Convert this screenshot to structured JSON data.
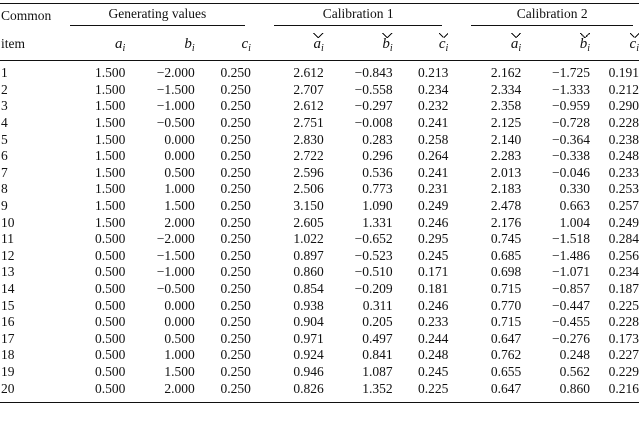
{
  "header": {
    "col0_line1": "Common",
    "col0_line2": "item",
    "groups": [
      "Generating values",
      "Calibration 1",
      "Calibration 2"
    ],
    "params": [
      "a",
      "b",
      "c"
    ],
    "param_subscript": "i"
  },
  "rows": [
    [
      "1",
      "1.500",
      "−2.000",
      "0.250",
      "2.612",
      "−0.843",
      "0.213",
      "2.162",
      "−1.725",
      "0.191"
    ],
    [
      "2",
      "1.500",
      "−1.500",
      "0.250",
      "2.707",
      "−0.558",
      "0.234",
      "2.334",
      "−1.333",
      "0.212"
    ],
    [
      "3",
      "1.500",
      "−1.000",
      "0.250",
      "2.612",
      "−0.297",
      "0.232",
      "2.358",
      "−0.959",
      "0.290"
    ],
    [
      "4",
      "1.500",
      "−0.500",
      "0.250",
      "2.751",
      "−0.008",
      "0.241",
      "2.125",
      "−0.728",
      "0.228"
    ],
    [
      "5",
      "1.500",
      "0.000",
      "0.250",
      "2.830",
      "0.283",
      "0.258",
      "2.140",
      "−0.364",
      "0.238"
    ],
    [
      "6",
      "1.500",
      "0.000",
      "0.250",
      "2.722",
      "0.296",
      "0.264",
      "2.283",
      "−0.338",
      "0.248"
    ],
    [
      "7",
      "1.500",
      "0.500",
      "0.250",
      "2.596",
      "0.536",
      "0.241",
      "2.013",
      "−0.046",
      "0.233"
    ],
    [
      "8",
      "1.500",
      "1.000",
      "0.250",
      "2.506",
      "0.773",
      "0.231",
      "2.183",
      "0.330",
      "0.253"
    ],
    [
      "9",
      "1.500",
      "1.500",
      "0.250",
      "3.150",
      "1.090",
      "0.249",
      "2.478",
      "0.663",
      "0.257"
    ],
    [
      "10",
      "1.500",
      "2.000",
      "0.250",
      "2.605",
      "1.331",
      "0.246",
      "2.176",
      "1.004",
      "0.249"
    ],
    [
      "11",
      "0.500",
      "−2.000",
      "0.250",
      "1.022",
      "−0.652",
      "0.295",
      "0.745",
      "−1.518",
      "0.284"
    ],
    [
      "12",
      "0.500",
      "−1.500",
      "0.250",
      "0.897",
      "−0.523",
      "0.245",
      "0.685",
      "−1.486",
      "0.256"
    ],
    [
      "13",
      "0.500",
      "−1.000",
      "0.250",
      "0.860",
      "−0.510",
      "0.171",
      "0.698",
      "−1.071",
      "0.234"
    ],
    [
      "14",
      "0.500",
      "−0.500",
      "0.250",
      "0.854",
      "−0.209",
      "0.181",
      "0.715",
      "−0.857",
      "0.187"
    ],
    [
      "15",
      "0.500",
      "0.000",
      "0.250",
      "0.938",
      "0.311",
      "0.246",
      "0.770",
      "−0.447",
      "0.225"
    ],
    [
      "16",
      "0.500",
      "0.000",
      "0.250",
      "0.904",
      "0.205",
      "0.233",
      "0.715",
      "−0.455",
      "0.228"
    ],
    [
      "17",
      "0.500",
      "0.500",
      "0.250",
      "0.971",
      "0.497",
      "0.244",
      "0.647",
      "−0.276",
      "0.173"
    ],
    [
      "18",
      "0.500",
      "1.000",
      "0.250",
      "0.924",
      "0.841",
      "0.248",
      "0.762",
      "0.248",
      "0.227"
    ],
    [
      "19",
      "0.500",
      "1.500",
      "0.250",
      "0.946",
      "1.087",
      "0.245",
      "0.655",
      "0.562",
      "0.229"
    ],
    [
      "20",
      "0.500",
      "2.000",
      "0.250",
      "0.826",
      "1.352",
      "0.225",
      "0.647",
      "0.860",
      "0.216"
    ]
  ]
}
